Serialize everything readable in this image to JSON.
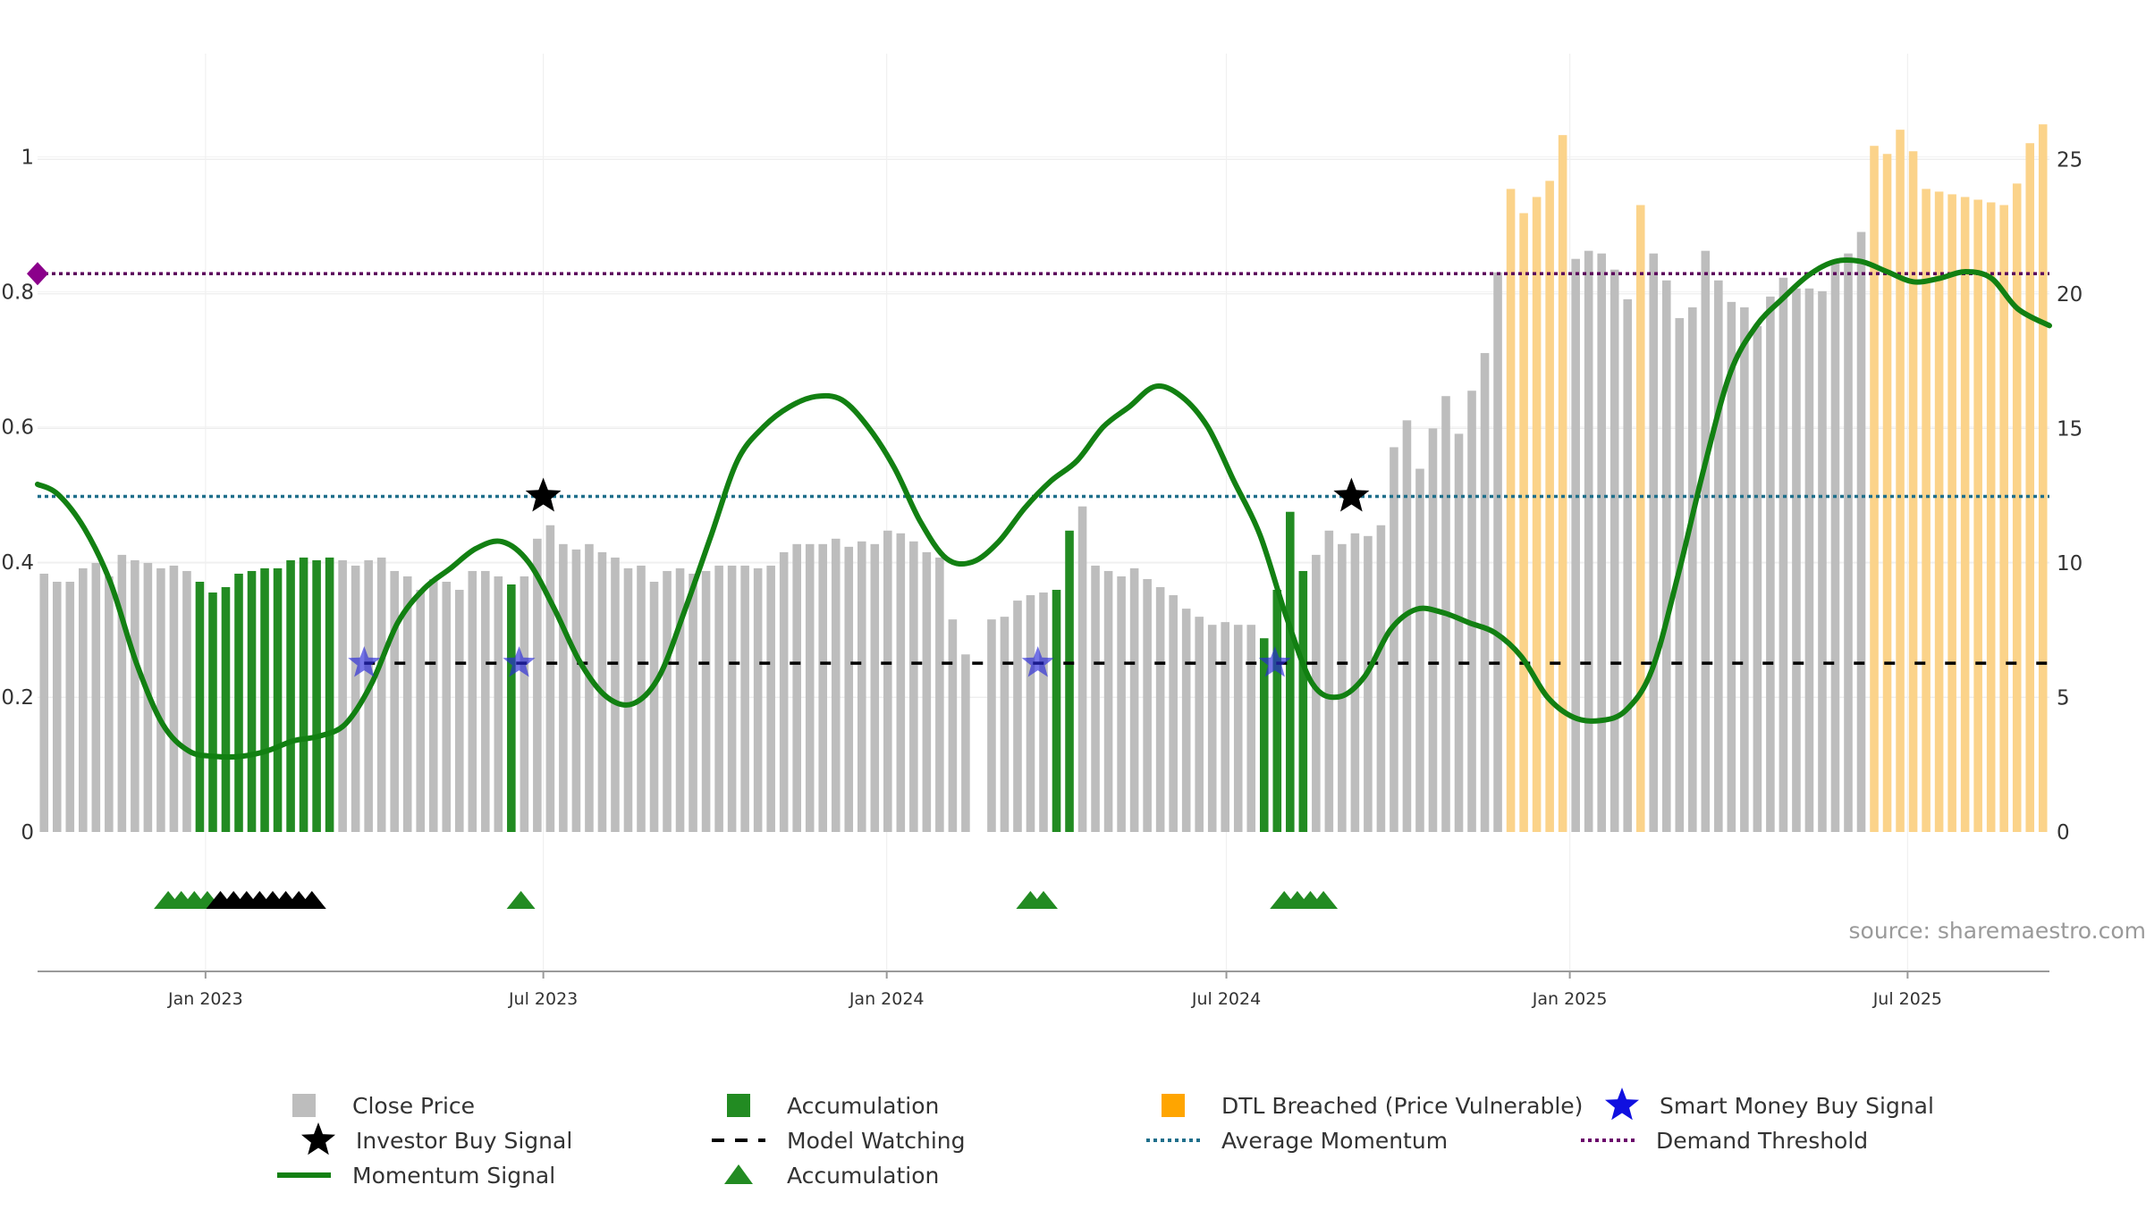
{
  "chart_data": {
    "type": "bar",
    "title": "",
    "xlabel": "",
    "ylabel": "",
    "x_start": "2022-10-03",
    "x_end": "2025-09-15",
    "x_ticks": [
      {
        "date": "2023-01-01",
        "label": "Jan 2023"
      },
      {
        "date": "2023-07-01",
        "label": "Jul 2023"
      },
      {
        "date": "2024-01-01",
        "label": "Jan 2024"
      },
      {
        "date": "2024-07-01",
        "label": "Jul 2024"
      },
      {
        "date": "2025-01-01",
        "label": "Jan 2025"
      },
      {
        "date": "2025-07-01",
        "label": "Jul 2025"
      }
    ],
    "y_left": {
      "range": [
        0,
        1.1
      ],
      "ticks": [
        {
          "value": 0,
          "label": "0"
        },
        {
          "value": 0.2,
          "label": "0.2"
        },
        {
          "value": 0.4,
          "label": "0.4"
        },
        {
          "value": 0.6,
          "label": "0.6"
        },
        {
          "value": 0.8,
          "label": "0.8"
        },
        {
          "value": 1.0,
          "label": "1"
        }
      ]
    },
    "y_right": {
      "range": [
        0,
        27.6
      ],
      "ticks": [
        {
          "value": 0,
          "label": "0"
        },
        {
          "value": 5,
          "label": "5"
        },
        {
          "value": 10,
          "label": "10"
        },
        {
          "value": 15,
          "label": "15"
        },
        {
          "value": 20,
          "label": "20"
        },
        {
          "value": 25,
          "label": "25"
        }
      ]
    },
    "grid": true,
    "bar_colors": {
      "close": "#bdbdbd",
      "accumulation": "#228b22",
      "dtl": "#fbd38a"
    },
    "weekly_bars": [
      {
        "p": 9.6,
        "s": "c"
      },
      {
        "p": 9.3,
        "s": "c"
      },
      {
        "p": 9.3,
        "s": "c"
      },
      {
        "p": 9.8,
        "s": "c"
      },
      {
        "p": 10.0,
        "s": "c"
      },
      {
        "p": 9.5,
        "s": "c"
      },
      {
        "p": 10.3,
        "s": "c"
      },
      {
        "p": 10.1,
        "s": "c"
      },
      {
        "p": 10.0,
        "s": "c"
      },
      {
        "p": 9.8,
        "s": "c"
      },
      {
        "p": 9.9,
        "s": "c"
      },
      {
        "p": 9.7,
        "s": "c"
      },
      {
        "p": 9.3,
        "s": "a"
      },
      {
        "p": 8.9,
        "s": "a"
      },
      {
        "p": 9.1,
        "s": "a"
      },
      {
        "p": 9.6,
        "s": "a"
      },
      {
        "p": 9.7,
        "s": "a"
      },
      {
        "p": 9.8,
        "s": "a"
      },
      {
        "p": 9.8,
        "s": "a"
      },
      {
        "p": 10.1,
        "s": "a"
      },
      {
        "p": 10.2,
        "s": "a"
      },
      {
        "p": 10.1,
        "s": "a"
      },
      {
        "p": 10.2,
        "s": "a"
      },
      {
        "p": 10.1,
        "s": "c"
      },
      {
        "p": 9.9,
        "s": "c"
      },
      {
        "p": 10.1,
        "s": "c"
      },
      {
        "p": 10.2,
        "s": "c"
      },
      {
        "p": 9.7,
        "s": "c"
      },
      {
        "p": 9.5,
        "s": "c"
      },
      {
        "p": 9.0,
        "s": "c"
      },
      {
        "p": 9.4,
        "s": "c"
      },
      {
        "p": 9.3,
        "s": "c"
      },
      {
        "p": 9.0,
        "s": "c"
      },
      {
        "p": 9.7,
        "s": "c"
      },
      {
        "p": 9.7,
        "s": "c"
      },
      {
        "p": 9.5,
        "s": "c"
      },
      {
        "p": 9.2,
        "s": "a"
      },
      {
        "p": 9.5,
        "s": "c"
      },
      {
        "p": 10.9,
        "s": "c"
      },
      {
        "p": 11.4,
        "s": "c"
      },
      {
        "p": 10.7,
        "s": "c"
      },
      {
        "p": 10.5,
        "s": "c"
      },
      {
        "p": 10.7,
        "s": "c"
      },
      {
        "p": 10.4,
        "s": "c"
      },
      {
        "p": 10.2,
        "s": "c"
      },
      {
        "p": 9.8,
        "s": "c"
      },
      {
        "p": 9.9,
        "s": "c"
      },
      {
        "p": 9.3,
        "s": "c"
      },
      {
        "p": 9.7,
        "s": "c"
      },
      {
        "p": 9.8,
        "s": "c"
      },
      {
        "p": 9.6,
        "s": "c"
      },
      {
        "p": 9.7,
        "s": "c"
      },
      {
        "p": 9.9,
        "s": "c"
      },
      {
        "p": 9.9,
        "s": "c"
      },
      {
        "p": 9.9,
        "s": "c"
      },
      {
        "p": 9.8,
        "s": "c"
      },
      {
        "p": 9.9,
        "s": "c"
      },
      {
        "p": 10.4,
        "s": "c"
      },
      {
        "p": 10.7,
        "s": "c"
      },
      {
        "p": 10.7,
        "s": "c"
      },
      {
        "p": 10.7,
        "s": "c"
      },
      {
        "p": 10.9,
        "s": "c"
      },
      {
        "p": 10.6,
        "s": "c"
      },
      {
        "p": 10.8,
        "s": "c"
      },
      {
        "p": 10.7,
        "s": "c"
      },
      {
        "p": 11.2,
        "s": "c"
      },
      {
        "p": 11.1,
        "s": "c"
      },
      {
        "p": 10.8,
        "s": "c"
      },
      {
        "p": 10.4,
        "s": "c"
      },
      {
        "p": 10.2,
        "s": "c"
      },
      {
        "p": 7.9,
        "s": "c"
      },
      {
        "p": 6.6,
        "s": "c"
      },
      {
        "p": 0,
        "s": "c"
      },
      {
        "p": 7.9,
        "s": "c"
      },
      {
        "p": 8.0,
        "s": "c"
      },
      {
        "p": 8.6,
        "s": "c"
      },
      {
        "p": 8.8,
        "s": "c"
      },
      {
        "p": 8.9,
        "s": "c"
      },
      {
        "p": 9.0,
        "s": "a"
      },
      {
        "p": 11.2,
        "s": "a"
      },
      {
        "p": 12.1,
        "s": "c"
      },
      {
        "p": 9.9,
        "s": "c"
      },
      {
        "p": 9.7,
        "s": "c"
      },
      {
        "p": 9.5,
        "s": "c"
      },
      {
        "p": 9.8,
        "s": "c"
      },
      {
        "p": 9.4,
        "s": "c"
      },
      {
        "p": 9.1,
        "s": "c"
      },
      {
        "p": 8.8,
        "s": "c"
      },
      {
        "p": 8.3,
        "s": "c"
      },
      {
        "p": 8.0,
        "s": "c"
      },
      {
        "p": 7.7,
        "s": "c"
      },
      {
        "p": 7.8,
        "s": "c"
      },
      {
        "p": 7.7,
        "s": "c"
      },
      {
        "p": 7.7,
        "s": "c"
      },
      {
        "p": 7.2,
        "s": "a"
      },
      {
        "p": 9.0,
        "s": "a"
      },
      {
        "p": 11.9,
        "s": "a"
      },
      {
        "p": 9.7,
        "s": "a"
      },
      {
        "p": 10.3,
        "s": "c"
      },
      {
        "p": 11.2,
        "s": "c"
      },
      {
        "p": 10.7,
        "s": "c"
      },
      {
        "p": 11.1,
        "s": "c"
      },
      {
        "p": 11.0,
        "s": "c"
      },
      {
        "p": 11.4,
        "s": "c"
      },
      {
        "p": 14.3,
        "s": "c"
      },
      {
        "p": 15.3,
        "s": "c"
      },
      {
        "p": 13.5,
        "s": "c"
      },
      {
        "p": 15.0,
        "s": "c"
      },
      {
        "p": 16.2,
        "s": "c"
      },
      {
        "p": 14.8,
        "s": "c"
      },
      {
        "p": 16.4,
        "s": "c"
      },
      {
        "p": 17.8,
        "s": "c"
      },
      {
        "p": 20.8,
        "s": "c"
      },
      {
        "p": 23.9,
        "s": "d"
      },
      {
        "p": 23.0,
        "s": "d"
      },
      {
        "p": 23.6,
        "s": "d"
      },
      {
        "p": 24.2,
        "s": "d"
      },
      {
        "p": 25.9,
        "s": "d"
      },
      {
        "p": 21.3,
        "s": "c"
      },
      {
        "p": 21.6,
        "s": "c"
      },
      {
        "p": 21.5,
        "s": "c"
      },
      {
        "p": 20.9,
        "s": "c"
      },
      {
        "p": 19.8,
        "s": "c"
      },
      {
        "p": 23.3,
        "s": "d"
      },
      {
        "p": 21.5,
        "s": "c"
      },
      {
        "p": 20.5,
        "s": "c"
      },
      {
        "p": 19.1,
        "s": "c"
      },
      {
        "p": 19.5,
        "s": "c"
      },
      {
        "p": 21.6,
        "s": "c"
      },
      {
        "p": 20.5,
        "s": "c"
      },
      {
        "p": 19.7,
        "s": "c"
      },
      {
        "p": 19.5,
        "s": "c"
      },
      {
        "p": 18.8,
        "s": "c"
      },
      {
        "p": 19.9,
        "s": "c"
      },
      {
        "p": 20.6,
        "s": "c"
      },
      {
        "p": 20.2,
        "s": "c"
      },
      {
        "p": 20.2,
        "s": "c"
      },
      {
        "p": 20.1,
        "s": "c"
      },
      {
        "p": 21.2,
        "s": "c"
      },
      {
        "p": 21.5,
        "s": "c"
      },
      {
        "p": 22.3,
        "s": "c"
      },
      {
        "p": 25.5,
        "s": "d"
      },
      {
        "p": 25.2,
        "s": "d"
      },
      {
        "p": 26.1,
        "s": "d"
      },
      {
        "p": 25.3,
        "s": "d"
      },
      {
        "p": 23.9,
        "s": "d"
      },
      {
        "p": 23.8,
        "s": "d"
      },
      {
        "p": 23.7,
        "s": "d"
      },
      {
        "p": 23.6,
        "s": "d"
      },
      {
        "p": 23.5,
        "s": "d"
      },
      {
        "p": 23.4,
        "s": "d"
      },
      {
        "p": 23.3,
        "s": "d"
      },
      {
        "p": 24.1,
        "s": "d"
      },
      {
        "p": 25.6,
        "s": "d"
      },
      {
        "p": 26.3,
        "s": "d"
      }
    ],
    "momentum_signal": [
      {
        "date": "2022-10-03",
        "value": 0.515
      },
      {
        "date": "2022-10-14",
        "value": 0.5
      },
      {
        "date": "2022-10-28",
        "value": 0.45
      },
      {
        "date": "2022-11-11",
        "value": 0.37
      },
      {
        "date": "2022-11-25",
        "value": 0.25
      },
      {
        "date": "2022-12-09",
        "value": 0.16
      },
      {
        "date": "2022-12-23",
        "value": 0.12
      },
      {
        "date": "2023-01-06",
        "value": 0.112
      },
      {
        "date": "2023-01-20",
        "value": 0.112
      },
      {
        "date": "2023-02-03",
        "value": 0.12
      },
      {
        "date": "2023-02-17",
        "value": 0.135
      },
      {
        "date": "2023-03-03",
        "value": 0.142
      },
      {
        "date": "2023-03-17",
        "value": 0.16
      },
      {
        "date": "2023-03-31",
        "value": 0.22
      },
      {
        "date": "2023-04-14",
        "value": 0.31
      },
      {
        "date": "2023-04-28",
        "value": 0.36
      },
      {
        "date": "2023-05-12",
        "value": 0.39
      },
      {
        "date": "2023-05-26",
        "value": 0.42
      },
      {
        "date": "2023-06-09",
        "value": 0.43
      },
      {
        "date": "2023-06-23",
        "value": 0.4
      },
      {
        "date": "2023-07-07",
        "value": 0.33
      },
      {
        "date": "2023-07-21",
        "value": 0.25
      },
      {
        "date": "2023-08-04",
        "value": 0.2
      },
      {
        "date": "2023-08-18",
        "value": 0.19
      },
      {
        "date": "2023-09-01",
        "value": 0.23
      },
      {
        "date": "2023-09-15",
        "value": 0.33
      },
      {
        "date": "2023-09-29",
        "value": 0.44
      },
      {
        "date": "2023-10-13",
        "value": 0.55
      },
      {
        "date": "2023-10-27",
        "value": 0.6
      },
      {
        "date": "2023-11-10",
        "value": 0.63
      },
      {
        "date": "2023-11-24",
        "value": 0.645
      },
      {
        "date": "2023-12-08",
        "value": 0.64
      },
      {
        "date": "2023-12-22",
        "value": 0.6
      },
      {
        "date": "2024-01-05",
        "value": 0.54
      },
      {
        "date": "2024-01-19",
        "value": 0.46
      },
      {
        "date": "2024-02-02",
        "value": 0.405
      },
      {
        "date": "2024-02-16",
        "value": 0.4
      },
      {
        "date": "2024-03-01",
        "value": 0.43
      },
      {
        "date": "2024-03-15",
        "value": 0.48
      },
      {
        "date": "2024-03-29",
        "value": 0.52
      },
      {
        "date": "2024-04-12",
        "value": 0.55
      },
      {
        "date": "2024-04-26",
        "value": 0.6
      },
      {
        "date": "2024-05-10",
        "value": 0.63
      },
      {
        "date": "2024-05-24",
        "value": 0.66
      },
      {
        "date": "2024-06-07",
        "value": 0.645
      },
      {
        "date": "2024-06-21",
        "value": 0.6
      },
      {
        "date": "2024-07-05",
        "value": 0.52
      },
      {
        "date": "2024-07-19",
        "value": 0.44
      },
      {
        "date": "2024-08-02",
        "value": 0.32
      },
      {
        "date": "2024-08-16",
        "value": 0.22
      },
      {
        "date": "2024-08-30",
        "value": 0.2
      },
      {
        "date": "2024-09-13",
        "value": 0.23
      },
      {
        "date": "2024-09-27",
        "value": 0.3
      },
      {
        "date": "2024-10-11",
        "value": 0.33
      },
      {
        "date": "2024-10-25",
        "value": 0.325
      },
      {
        "date": "2024-11-08",
        "value": 0.31
      },
      {
        "date": "2024-11-22",
        "value": 0.295
      },
      {
        "date": "2024-12-06",
        "value": 0.26
      },
      {
        "date": "2024-12-20",
        "value": 0.2
      },
      {
        "date": "2025-01-03",
        "value": 0.17
      },
      {
        "date": "2025-01-17",
        "value": 0.165
      },
      {
        "date": "2025-01-31",
        "value": 0.18
      },
      {
        "date": "2025-02-14",
        "value": 0.24
      },
      {
        "date": "2025-02-28",
        "value": 0.38
      },
      {
        "date": "2025-03-14",
        "value": 0.54
      },
      {
        "date": "2025-03-28",
        "value": 0.68
      },
      {
        "date": "2025-04-11",
        "value": 0.75
      },
      {
        "date": "2025-04-25",
        "value": 0.79
      },
      {
        "date": "2025-05-09",
        "value": 0.825
      },
      {
        "date": "2025-05-23",
        "value": 0.845
      },
      {
        "date": "2025-06-06",
        "value": 0.845
      },
      {
        "date": "2025-06-20",
        "value": 0.83
      },
      {
        "date": "2025-07-04",
        "value": 0.815
      },
      {
        "date": "2025-07-18",
        "value": 0.82
      },
      {
        "date": "2025-08-01",
        "value": 0.83
      },
      {
        "date": "2025-08-15",
        "value": 0.82
      },
      {
        "date": "2025-08-29",
        "value": 0.775
      },
      {
        "date": "2025-09-15",
        "value": 0.75
      }
    ],
    "average_momentum": 0.497,
    "demand_threshold": 0.827,
    "model_watching": {
      "value": 0.25,
      "start": "2023-03-27",
      "end": "2025-09-15"
    },
    "investor_buy_signals": [
      {
        "date": "2023-07-01",
        "value": 0.497
      },
      {
        "date": "2024-09-06",
        "value": 0.497
      }
    ],
    "smart_money_buy_signals": [
      {
        "date": "2023-03-27",
        "value": 0.25
      },
      {
        "date": "2023-06-18",
        "value": 0.25
      },
      {
        "date": "2024-03-22",
        "value": 0.25
      },
      {
        "date": "2024-07-27",
        "value": 0.25
      }
    ],
    "accumulation_triangles": [
      {
        "date": "2022-12-12",
        "color": "#228b22"
      },
      {
        "date": "2022-12-19",
        "color": "#228b22"
      },
      {
        "date": "2022-12-26",
        "color": "#228b22"
      },
      {
        "date": "2023-01-02",
        "color": "#228b22"
      },
      {
        "date": "2023-01-09",
        "color": "#000000"
      },
      {
        "date": "2023-01-16",
        "color": "#000000"
      },
      {
        "date": "2023-01-23",
        "color": "#000000"
      },
      {
        "date": "2023-01-30",
        "color": "#000000"
      },
      {
        "date": "2023-02-06",
        "color": "#000000"
      },
      {
        "date": "2023-02-13",
        "color": "#000000"
      },
      {
        "date": "2023-02-20",
        "color": "#000000"
      },
      {
        "date": "2023-02-27",
        "color": "#000000"
      },
      {
        "date": "2023-06-19",
        "color": "#228b22"
      },
      {
        "date": "2024-03-18",
        "color": "#228b22"
      },
      {
        "date": "2024-03-25",
        "color": "#228b22"
      },
      {
        "date": "2024-08-01",
        "color": "#228b22"
      },
      {
        "date": "2024-08-08",
        "color": "#228b22"
      },
      {
        "date": "2024-08-15",
        "color": "#228b22"
      },
      {
        "date": "2024-08-22",
        "color": "#228b22"
      }
    ],
    "legend": {
      "placement": "bottom",
      "items": [
        {
          "key": "close",
          "label": "Close Price",
          "symbol": "square",
          "color": "#bdbdbd"
        },
        {
          "key": "accumulation_bar",
          "label": "Accumulation",
          "symbol": "square",
          "color": "#228b22"
        },
        {
          "key": "dtl",
          "label": "DTL Breached (Price Vulnerable)",
          "symbol": "square",
          "color": "#ffa500"
        },
        {
          "key": "smart_money",
          "label": "Smart Money Buy Signal",
          "symbol": "star",
          "color": "#1010e0"
        },
        {
          "key": "investor_buy",
          "label": "Investor Buy Signal",
          "symbol": "star",
          "color": "#000000"
        },
        {
          "key": "model_watching",
          "label": "Model Watching",
          "symbol": "dash",
          "color": "#000000"
        },
        {
          "key": "avg_momentum",
          "label": "Average Momentum",
          "symbol": "dot",
          "color": "#1f6f8b"
        },
        {
          "key": "demand_threshold",
          "label": "Demand Threshold",
          "symbol": "dot",
          "color": "#6a006a"
        },
        {
          "key": "momentum",
          "label": "Momentum Signal",
          "symbol": "line",
          "color": "#128012"
        },
        {
          "key": "accumulation_tri",
          "label": "Accumulation",
          "symbol": "triangle",
          "color": "#228b22"
        }
      ]
    },
    "source": "source: sharemaestro.com"
  }
}
